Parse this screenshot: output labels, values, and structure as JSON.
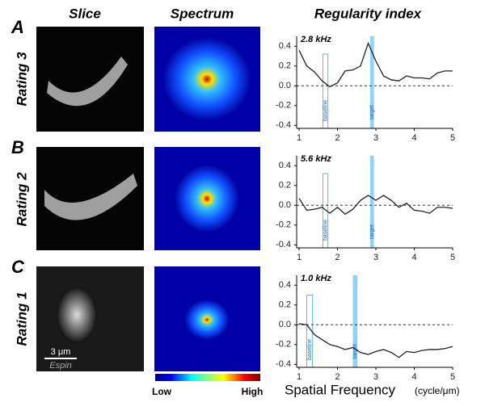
{
  "columns": [
    "Slice",
    "Spectrum",
    "Regularity index"
  ],
  "panels": [
    {
      "letter": "A",
      "rating": "Rating 3"
    },
    {
      "letter": "B",
      "rating": "Rating 2"
    },
    {
      "letter": "C",
      "rating": "Rating 1"
    }
  ],
  "scale_bar": "3 μm",
  "stain": "Espin",
  "colorbar": {
    "low": "Low",
    "high": "High"
  },
  "x_axis_label": "Spatial Frequency",
  "x_axis_unit": "(cycle/μm)",
  "chart_data": [
    {
      "type": "line",
      "title": "2.8 kHz",
      "xlim": [
        1,
        5
      ],
      "ylim": [
        -0.43,
        0.5
      ],
      "xticks": [
        1,
        2,
        3,
        4,
        5
      ],
      "yticks": [
        0.4,
        0.2,
        {
          "value": 0,
          "label": "0.0"
        },
        -0.2,
        -0.4
      ],
      "x": [
        1,
        1.2,
        1.4,
        1.6,
        1.8,
        2.0,
        2.2,
        2.4,
        2.6,
        2.8,
        3.0,
        3.2,
        3.4,
        3.6,
        3.8,
        4.0,
        4.2,
        4.4,
        4.6,
        4.8,
        5.0
      ],
      "series": [
        {
          "color": "#222222",
          "values": [
            0.36,
            0.2,
            0.14,
            0.05,
            -0.01,
            0.03,
            0.15,
            0.16,
            0.2,
            0.43,
            0.25,
            0.1,
            0.06,
            0.05,
            0.1,
            0.08,
            0.08,
            0.07,
            0.13,
            0.15,
            0.15
          ]
        }
      ],
      "baseline": {
        "label": "baseline",
        "xlim": [
          1.62,
          1.75
        ],
        "top": 0.32
      },
      "target": {
        "label": "target",
        "xlim": [
          2.85,
          2.95
        ]
      }
    },
    {
      "type": "line",
      "title": "5.6 kHz",
      "xlim": [
        1,
        5
      ],
      "ylim": [
        -0.43,
        0.5
      ],
      "xticks": [
        1,
        2,
        3,
        4,
        5
      ],
      "yticks": [
        0.4,
        0.2,
        {
          "value": 0,
          "label": "0.0"
        },
        -0.2,
        -0.4
      ],
      "x": [
        1,
        1.2,
        1.4,
        1.6,
        1.8,
        2.0,
        2.2,
        2.4,
        2.6,
        2.8,
        3.0,
        3.2,
        3.4,
        3.6,
        3.8,
        4.0,
        4.2,
        4.4,
        4.6,
        4.8,
        5.0
      ],
      "series": [
        {
          "color": "#222222",
          "values": [
            0.07,
            -0.05,
            -0.04,
            -0.02,
            -0.08,
            -0.02,
            -0.09,
            -0.04,
            0.05,
            0.1,
            0.05,
            0.1,
            0.05,
            -0.02,
            0.02,
            -0.05,
            -0.06,
            -0.08,
            -0.02,
            -0.02,
            -0.03
          ]
        }
      ],
      "baseline": {
        "label": "baseline",
        "xlim": [
          1.62,
          1.75
        ],
        "top": 0.32
      },
      "target": {
        "label": "target",
        "xlim": [
          2.85,
          2.95
        ]
      }
    },
    {
      "type": "line",
      "title": "1.0 kHz",
      "xlim": [
        1,
        5
      ],
      "ylim": [
        -0.43,
        0.5
      ],
      "xticks": [
        1,
        2,
        3,
        4,
        5
      ],
      "yticks": [
        0.4,
        0.2,
        {
          "value": 0,
          "label": "0.0"
        },
        -0.2,
        -0.4
      ],
      "x": [
        1,
        1.2,
        1.4,
        1.6,
        1.8,
        2.0,
        2.2,
        2.4,
        2.6,
        2.8,
        3.0,
        3.2,
        3.4,
        3.6,
        3.8,
        4.0,
        4.2,
        4.4,
        4.6,
        4.8,
        5.0
      ],
      "series": [
        {
          "color": "#222222",
          "values": [
            0.01,
            0.0,
            -0.1,
            -0.15,
            -0.2,
            -0.22,
            -0.25,
            -0.23,
            -0.28,
            -0.3,
            -0.27,
            -0.25,
            -0.28,
            -0.33,
            -0.27,
            -0.28,
            -0.26,
            -0.25,
            -0.25,
            -0.24,
            -0.22
          ]
        }
      ],
      "baseline": {
        "label": "baseline",
        "xlim": [
          1.2,
          1.35
        ],
        "top": 0.3
      },
      "target": {
        "label": "target",
        "xlim": [
          2.4,
          2.52
        ]
      }
    }
  ]
}
